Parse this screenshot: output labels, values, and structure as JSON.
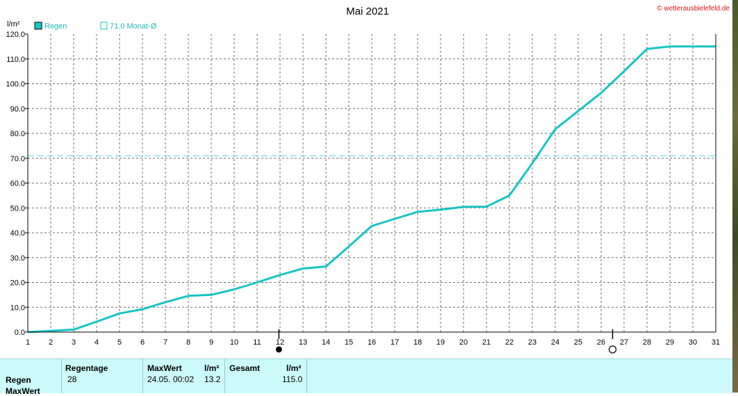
{
  "chart_data": {
    "type": "line",
    "title": "Mai 2021",
    "ylabel": "l/m²",
    "watermark": "© wetterausbielefeld.de",
    "x": [
      1,
      2,
      3,
      4,
      5,
      6,
      7,
      8,
      9,
      10,
      11,
      12,
      13,
      14,
      15,
      16,
      17,
      18,
      19,
      20,
      21,
      22,
      23,
      24,
      25,
      26,
      27,
      28,
      29,
      30,
      31
    ],
    "xlim": [
      1,
      31
    ],
    "ylim": [
      0,
      120
    ],
    "yticks": [
      "0.0",
      "10.0",
      "20.0",
      "30.0",
      "40.0",
      "50.0",
      "60.0",
      "70.0",
      "80.0",
      "90.0",
      "100.0",
      "110.0",
      "120.0"
    ],
    "grid": true,
    "legend_position": "top-left",
    "series": [
      {
        "name": "Regen",
        "color": "#18c4c4",
        "values": [
          0,
          0.5,
          1.0,
          4.2,
          7.5,
          9.2,
          12.0,
          14.6,
          15.0,
          17.2,
          20.0,
          23.0,
          25.6,
          26.4,
          34.5,
          42.7,
          45.6,
          48.4,
          49.3,
          50.4,
          50.5,
          55.0,
          68.0,
          81.7,
          89.0,
          96.3,
          105.0,
          114.0,
          115.0,
          115.0,
          115.0
        ]
      }
    ],
    "reference_line": {
      "label": "71.0 Monat-Ø",
      "value": 71.0,
      "color": "#7fe0e0"
    },
    "moon_phases": [
      {
        "day": 11.95,
        "phase": "new-moon",
        "symbol": "●"
      },
      {
        "day": 26.5,
        "phase": "full-moon",
        "symbol": "○"
      }
    ]
  },
  "stats": {
    "row_labels": [
      "Regen",
      "MaxWert"
    ],
    "regentage_header": "Regentage",
    "regentage_value": "28",
    "maxwert_header": "MaxWert",
    "maxwert_unit": "l/m²",
    "maxwert_date": "24.05.",
    "maxwert_time": "00:02",
    "maxwert_value": "13.2",
    "gesamt_header": "Gesamt",
    "gesamt_unit": "l/m²",
    "gesamt_value": "115.0"
  },
  "colors": {
    "series": "#18c4c4",
    "grid": "#6e6e6e",
    "stats_bg": "#ccfafa",
    "watermark": "#e01010"
  }
}
